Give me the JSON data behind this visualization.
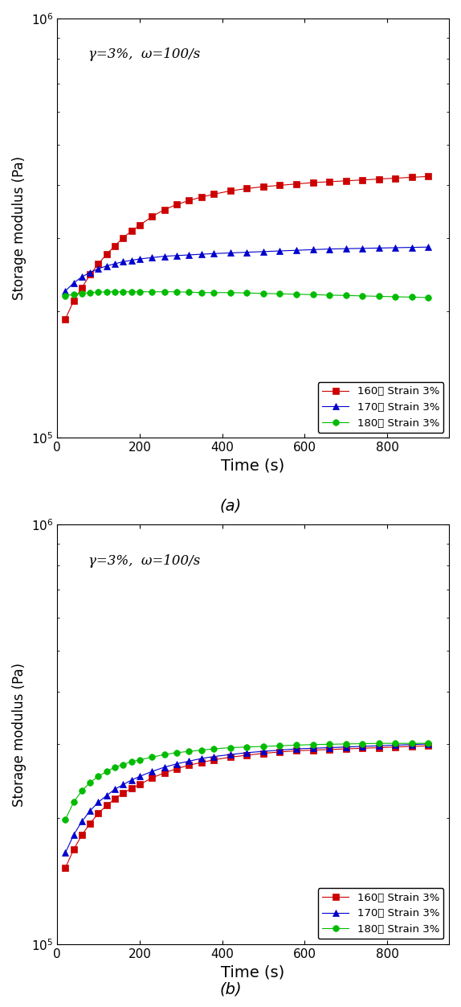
{
  "annotation": "γ=3%,  ω=100/s",
  "xlabel": "Time (s)",
  "ylabel": "Storage modulus (Pa)",
  "xlim": [
    0,
    950
  ],
  "ylim_log": [
    100000.0,
    1000000.0
  ],
  "xticks": [
    0,
    200,
    400,
    600,
    800
  ],
  "legend_labels_a": [
    "160도 Strain 3%",
    "170도 Strain 3%",
    "180도 Strain 3%"
  ],
  "legend_labels_b": [
    "160도 Strain 3%",
    "170도 Strain 3%",
    "180도 Strain 3%"
  ],
  "colors": [
    "#cc0000",
    "#0000cc",
    "#00bb00"
  ],
  "markers": [
    "s",
    "^",
    "o"
  ],
  "subplot_labels": [
    "(a)",
    "(b)"
  ],
  "panel_a": {
    "red": {
      "t": [
        20,
        40,
        60,
        80,
        100,
        120,
        140,
        160,
        180,
        200,
        230,
        260,
        290,
        320,
        350,
        380,
        420,
        460,
        500,
        540,
        580,
        620,
        660,
        700,
        740,
        780,
        820,
        860,
        900
      ],
      "y": [
        192000,
        212000,
        228000,
        245000,
        260000,
        274000,
        287000,
        300000,
        311000,
        321000,
        337000,
        350000,
        360000,
        368000,
        375000,
        381000,
        388000,
        393000,
        397000,
        400000,
        403000,
        406000,
        408000,
        410000,
        412000,
        414000,
        416000,
        418000,
        420000
      ]
    },
    "blue": {
      "t": [
        20,
        40,
        60,
        80,
        100,
        120,
        140,
        160,
        180,
        200,
        230,
        260,
        290,
        320,
        350,
        380,
        420,
        460,
        500,
        540,
        580,
        620,
        660,
        700,
        740,
        780,
        820,
        860,
        900
      ],
      "y": [
        224000,
        234000,
        242000,
        248000,
        253000,
        257000,
        260000,
        263000,
        265000,
        267000,
        269000,
        271000,
        272000,
        273000,
        274000,
        275000,
        276000,
        277000,
        278000,
        279000,
        280000,
        281000,
        282000,
        282500,
        283000,
        283500,
        284000,
        284500,
        285000
      ]
    },
    "green": {
      "t": [
        20,
        40,
        60,
        80,
        100,
        120,
        140,
        160,
        180,
        200,
        230,
        260,
        290,
        320,
        350,
        380,
        420,
        460,
        500,
        540,
        580,
        620,
        660,
        700,
        740,
        780,
        820,
        860,
        900
      ],
      "y": [
        218000,
        220000,
        221000,
        222000,
        222500,
        223000,
        223000,
        223000,
        223000,
        223000,
        223000,
        223000,
        223000,
        222500,
        222000,
        222000,
        222000,
        221500,
        221000,
        220500,
        220000,
        219500,
        219000,
        218500,
        218000,
        217500,
        217000,
        216500,
        216000
      ]
    }
  },
  "panel_b": {
    "red": {
      "t": [
        20,
        40,
        60,
        80,
        100,
        120,
        140,
        160,
        180,
        200,
        230,
        260,
        290,
        320,
        350,
        380,
        420,
        460,
        500,
        540,
        580,
        620,
        660,
        700,
        740,
        780,
        820,
        860,
        900
      ],
      "y": [
        152000,
        168000,
        182000,
        194000,
        205000,
        214000,
        222000,
        229000,
        235000,
        240000,
        249000,
        256000,
        262000,
        267000,
        271000,
        275000,
        279000,
        282000,
        285000,
        287000,
        289000,
        290000,
        291000,
        292000,
        293000,
        294000,
        295000,
        296000,
        297000
      ]
    },
    "blue": {
      "t": [
        20,
        40,
        60,
        80,
        100,
        120,
        140,
        160,
        180,
        200,
        230,
        260,
        290,
        320,
        350,
        380,
        420,
        460,
        500,
        540,
        580,
        620,
        660,
        700,
        740,
        780,
        820,
        860,
        900
      ],
      "y": [
        165000,
        182000,
        196000,
        208000,
        218000,
        226000,
        234000,
        240000,
        246000,
        251000,
        258000,
        264000,
        269000,
        273000,
        277000,
        280000,
        283000,
        286000,
        288000,
        290000,
        292000,
        293000,
        294000,
        295000,
        296000,
        297000,
        298000,
        299000,
        300000
      ]
    },
    "green": {
      "t": [
        20,
        40,
        60,
        80,
        100,
        120,
        140,
        160,
        180,
        200,
        230,
        260,
        290,
        320,
        350,
        380,
        420,
        460,
        500,
        540,
        580,
        620,
        660,
        700,
        740,
        780,
        820,
        860,
        900
      ],
      "y": [
        198000,
        218000,
        232000,
        243000,
        251000,
        258000,
        264000,
        268000,
        272000,
        275000,
        279000,
        283000,
        286000,
        288000,
        290000,
        292000,
        294000,
        295000,
        296000,
        297000,
        298000,
        299000,
        299500,
        300000,
        300500,
        301000,
        301000,
        301000,
        301000
      ]
    }
  }
}
